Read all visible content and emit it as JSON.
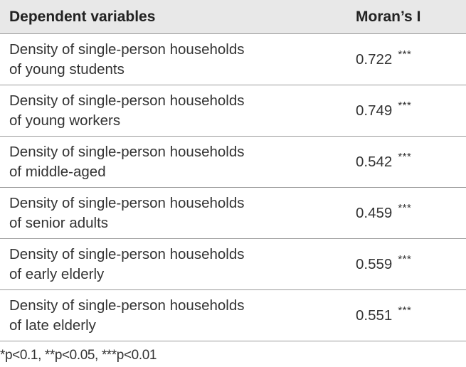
{
  "table": {
    "headers": {
      "variable": "Dependent variables",
      "value": "Moran’s I"
    },
    "rows": [
      {
        "line1": "Density of single-person households",
        "line2": "of young students",
        "value": "0.722",
        "sig": "***"
      },
      {
        "line1": "Density of single-person households",
        "line2": "of young workers",
        "value": "0.749",
        "sig": "***"
      },
      {
        "line1": "Density of single-person households",
        "line2": "of middle-aged",
        "value": "0.542",
        "sig": "***"
      },
      {
        "line1": "Density of single-person households",
        "line2": "of senior adults",
        "value": "0.459",
        "sig": "***"
      },
      {
        "line1": "Density of single-person households",
        "line2": "of early elderly",
        "value": "0.559",
        "sig": "***"
      },
      {
        "line1": "Density of single-person households",
        "line2": "of late elderly",
        "value": "0.551",
        "sig": "***"
      }
    ]
  },
  "note": "*p<0.1, **p<0.05, ***p<0.01"
}
